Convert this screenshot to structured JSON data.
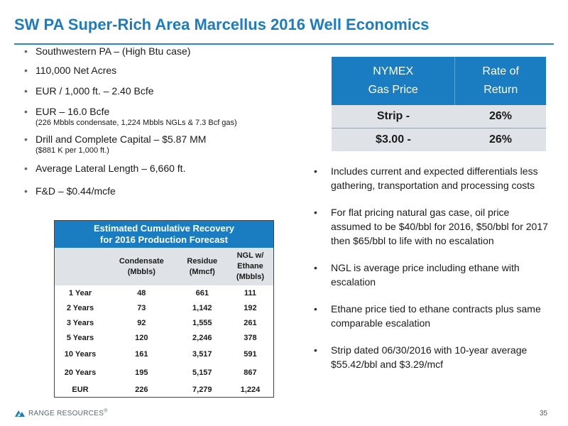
{
  "title": "SW PA Super-Rich Area Marcellus 2016 Well Economics",
  "left_bullets": [
    {
      "text": "Southwestern PA – (High Btu case)",
      "sub": ""
    },
    {
      "text": "110,000 Net Acres",
      "sub": ""
    },
    {
      "text": "EUR / 1,000 ft. – 2.40 Bcfe",
      "sub": ""
    },
    {
      "text": "EUR – 16.0 Bcfe",
      "sub": "(226 Mbbls condensate, 1,224 Mbbls NGLs & 7.3 Bcf gas)"
    },
    {
      "text": "Drill and Complete Capital – $5.87 MM",
      "sub": "($881 K per 1,000 ft.)"
    },
    {
      "text": "Average Lateral Length – 6,660 ft.",
      "sub": ""
    },
    {
      "text": "F&D – $0.44/mcfe",
      "sub": ""
    }
  ],
  "nymex_table": {
    "header_col1_line1": "NYMEX",
    "header_col1_line2": "Gas Price",
    "header_col2_line1": "Rate of",
    "header_col2_line2": "Return",
    "rows": [
      {
        "price": "Strip  -",
        "ror": "26%"
      },
      {
        "price": "$3.00  -",
        "ror": "26%"
      }
    ]
  },
  "right_bullets": [
    "Includes current and expected differentials less gathering, transportation and processing costs",
    "For flat pricing natural gas case, oil price assumed to be $40/bbl for 2016, $50/bbl for 2017 then $65/bbl to life with no escalation",
    "NGL is average price including ethane with escalation",
    "Ethane price tied to ethane contracts plus same comparable escalation",
    "Strip dated 06/30/2016 with 10-year average $55.42/bbl and $3.29/mcf"
  ],
  "recovery_table": {
    "title_line1": "Estimated Cumulative Recovery",
    "title_line2": "for 2016 Production Forecast",
    "col_condensate_l1": "Condensate",
    "col_condensate_l2": "(Mbbls)",
    "col_residue_l1": "Residue",
    "col_residue_l2": "(Mmcf)",
    "col_ngl_l1": "NGL w/",
    "col_ngl_l2": "Ethane",
    "col_ngl_l3": "(Mbbls)",
    "rows": [
      {
        "period": "1 Year",
        "condensate": "48",
        "residue": "661",
        "ngl": "111"
      },
      {
        "period": "2 Years",
        "condensate": "73",
        "residue": "1,142",
        "ngl": "192"
      },
      {
        "period": "3 Years",
        "condensate": "92",
        "residue": "1,555",
        "ngl": "261"
      },
      {
        "period": "5 Years",
        "condensate": "120",
        "residue": "2,246",
        "ngl": "378"
      },
      {
        "period": "10 Years",
        "condensate": "161",
        "residue": "3,517",
        "ngl": "591"
      },
      {
        "period": "20 Years",
        "condensate": "195",
        "residue": "5,157",
        "ngl": "867"
      },
      {
        "period": "EUR",
        "condensate": "226",
        "residue": "7,279",
        "ngl": "1,224"
      }
    ]
  },
  "footer": {
    "logo_text": "RANGE RESOURCES",
    "logo_mark": "®",
    "page_number": "35"
  },
  "colors": {
    "accent": "#1a7cc1",
    "table_fill": "#dfe3e7"
  }
}
